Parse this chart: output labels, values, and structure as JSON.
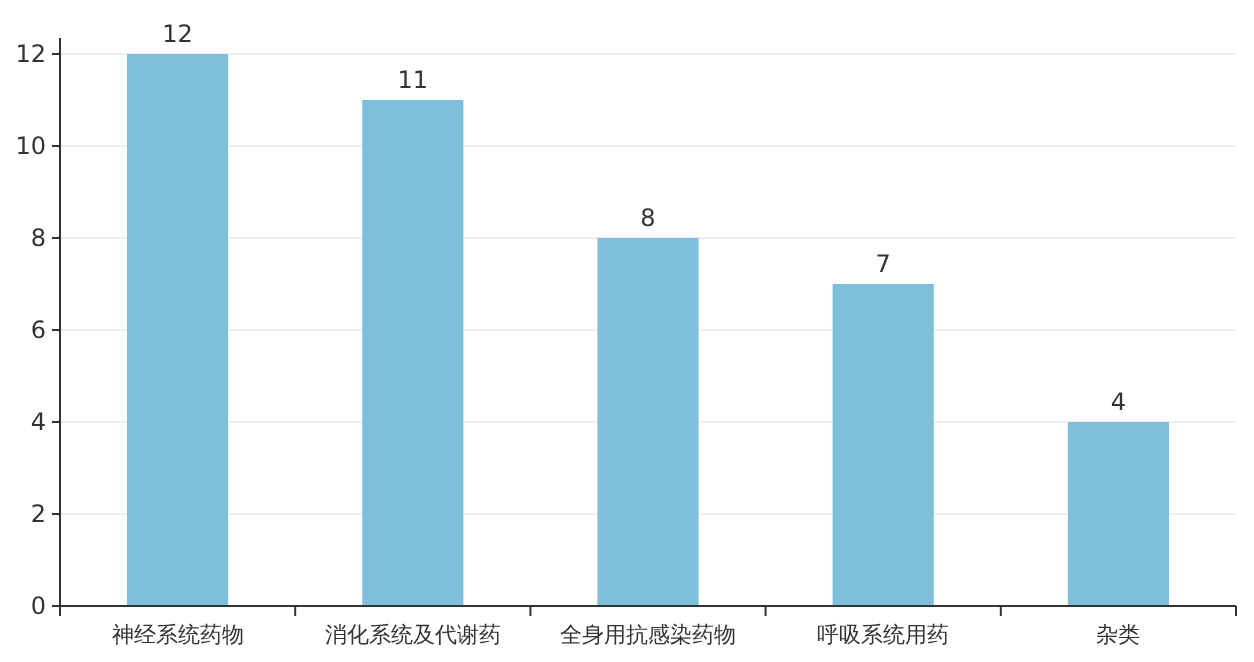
{
  "chart_data": {
    "type": "bar",
    "categories": [
      "神经系统药物",
      "消化系统及代谢药",
      "全身用抗感染药物",
      "呼吸系统用药",
      "杂类"
    ],
    "values": [
      12,
      11,
      8,
      7,
      4
    ],
    "color": "#7fbfdc",
    "ylim": [
      0,
      12
    ],
    "yticks": [
      0,
      2,
      4,
      6,
      8,
      10,
      12
    ],
    "grid": "y",
    "data_labels": true
  }
}
